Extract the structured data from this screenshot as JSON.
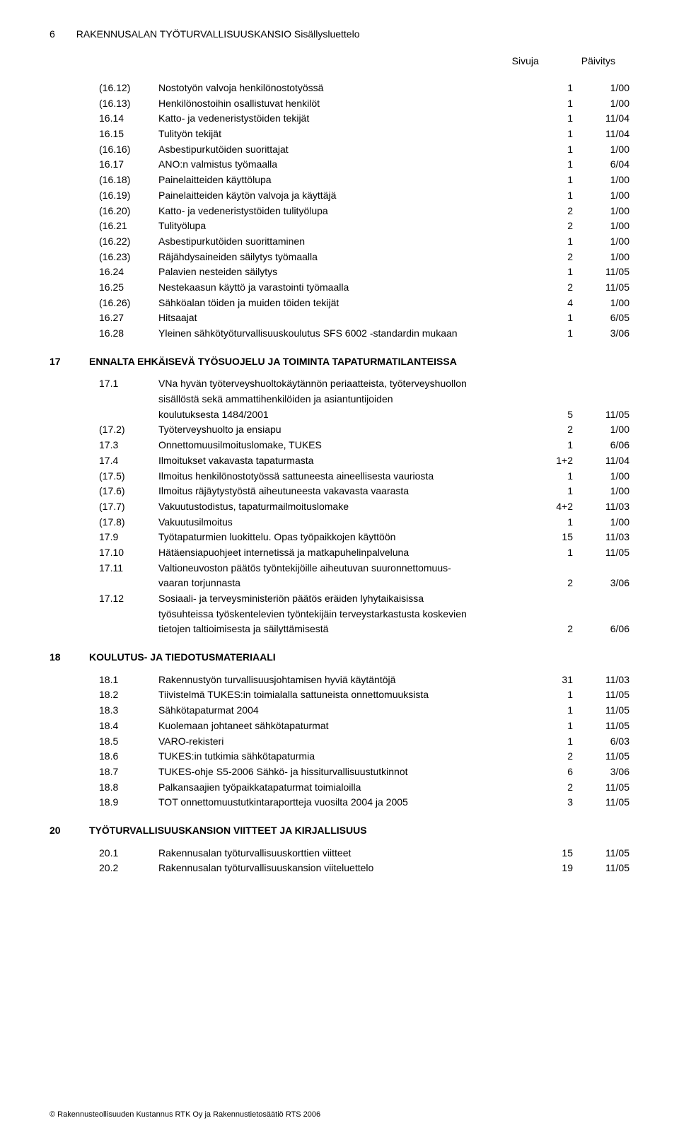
{
  "page_number": "6",
  "header_title": "RAKENNUSALAN TYÖTURVALLISUUSKANSIO Sisällysluettelo",
  "col_pages": "Sivuja",
  "col_updated": "Päivitys",
  "preRows": [
    {
      "num": "(16.12)",
      "label": "Nostotyön valvoja henkilönostotyössä",
      "pages": "1",
      "updated": "1/00"
    },
    {
      "num": "(16.13)",
      "label": "Henkilönostoihin osallistuvat henkilöt",
      "pages": "1",
      "updated": "1/00"
    },
    {
      "num": "16.14",
      "label": "Katto- ja vedeneristystöiden tekijät",
      "pages": "1",
      "updated": "11/04"
    },
    {
      "num": "16.15",
      "label": "Tulityön tekijät",
      "pages": "1",
      "updated": "11/04"
    },
    {
      "num": "(16.16)",
      "label": "Asbestipurkutöiden suorittajat",
      "pages": "1",
      "updated": "1/00"
    },
    {
      "num": "16.17",
      "label": "ANO:n valmistus työmaalla",
      "pages": "1",
      "updated": "6/04"
    },
    {
      "num": "(16.18)",
      "label": "Painelaitteiden käyttölupa",
      "pages": "1",
      "updated": "1/00"
    },
    {
      "num": "(16.19)",
      "label": "Painelaitteiden käytön valvoja ja käyttäjä",
      "pages": "1",
      "updated": "1/00"
    },
    {
      "num": "(16.20)",
      "label": "Katto- ja vedeneristystöiden tulityölupa",
      "pages": "2",
      "updated": "1/00"
    },
    {
      "num": "(16.21",
      "label": "Tulityölupa",
      "pages": "2",
      "updated": "1/00"
    },
    {
      "num": "(16.22)",
      "label": "Asbestipurkutöiden suorittaminen",
      "pages": "1",
      "updated": "1/00"
    },
    {
      "num": "(16.23)",
      "label": "Räjähdysaineiden säilytys työmaalla",
      "pages": "2",
      "updated": "1/00"
    },
    {
      "num": "16.24",
      "label": "Palavien nesteiden säilytys",
      "pages": "1",
      "updated": "11/05"
    },
    {
      "num": "16.25",
      "label": "Nestekaasun käyttö ja varastointi työmaalla",
      "pages": "2",
      "updated": "11/05"
    },
    {
      "num": "(16.26)",
      "label": "Sähköalan töiden ja muiden töiden tekijät",
      "pages": "4",
      "updated": "1/00"
    },
    {
      "num": "16.27",
      "label": "Hitsaajat",
      "pages": "1",
      "updated": "6/05"
    },
    {
      "num": "16.28",
      "label": "Yleinen sähkötyöturvallisuuskoulutus SFS 6002 -standardin mukaan",
      "pages": "1",
      "updated": "3/06"
    }
  ],
  "sections": [
    {
      "num": "17",
      "title": "ENNALTA EHKÄISEVÄ TYÖSUOJELU JA TOIMINTA TAPATURMATILANTEISSA",
      "rows": [
        {
          "num": "17.1",
          "multi": [
            "VNa hyvän työterveyshuoltokäytännön periaatteista, työterveyshuollon",
            "sisällöstä sekä ammattihenkilöiden ja asiantuntijoiden",
            "koulutuksesta 1484/2001"
          ],
          "pages": "5",
          "updated": "11/05"
        },
        {
          "num": "(17.2)",
          "label": "Työterveyshuolto ja ensiapu",
          "pages": "2",
          "updated": "1/00"
        },
        {
          "num": "17.3",
          "label": "Onnettomuusilmoituslomake, TUKES",
          "pages": "1",
          "updated": "6/06"
        },
        {
          "num": "17.4",
          "label": "Ilmoitukset vakavasta tapaturmasta",
          "pages": "1+2",
          "updated": "11/04"
        },
        {
          "num": "(17.5)",
          "label": "Ilmoitus henkilönostotyössä sattuneesta aineellisesta vauriosta",
          "pages": "1",
          "updated": "1/00"
        },
        {
          "num": "(17.6)",
          "label": "Ilmoitus räjäytystyöstä aiheutuneesta vakavasta vaarasta",
          "pages": "1",
          "updated": "1/00"
        },
        {
          "num": "(17.7)",
          "label": "Vakuutustodistus, tapaturmailmoituslomake",
          "pages": "4+2",
          "updated": "11/03"
        },
        {
          "num": "(17.8)",
          "label": "Vakuutusilmoitus",
          "pages": "1",
          "updated": "1/00"
        },
        {
          "num": "17.9",
          "label": "Työtapaturmien luokittelu. Opas työpaikkojen käyttöön",
          "pages": "15",
          "updated": "11/03"
        },
        {
          "num": "17.10",
          "label": "Hätäensiapuohjeet internetissä ja matkapuhelinpalveluna",
          "pages": "1",
          "updated": "11/05"
        },
        {
          "num": "17.11",
          "multi": [
            "Valtioneuvoston päätös työntekijöille aiheutuvan suuronnettomuus-",
            "vaaran torjunnasta"
          ],
          "pages": "2",
          "updated": "3/06"
        },
        {
          "num": "17.12",
          "multi": [
            "Sosiaali- ja terveysministeriön päätös eräiden lyhytaikaisissa",
            "työsuhteissa työskentelevien työntekijäin terveystarkastusta koskevien",
            "tietojen taltioimisesta ja säilyttämisestä"
          ],
          "pages": "2",
          "updated": "6/06"
        }
      ]
    },
    {
      "num": "18",
      "title": "KOULUTUS- JA TIEDOTUSMATERIAALI",
      "rows": [
        {
          "num": "18.1",
          "label": "Rakennustyön turvallisuusjohtamisen hyviä käytäntöjä",
          "pages": "31",
          "updated": "11/03"
        },
        {
          "num": "18.2",
          "label": "Tiivistelmä TUKES:in toimialalla sattuneista onnettomuuksista",
          "pages": "1",
          "updated": "11/05"
        },
        {
          "num": "18.3",
          "label": "Sähkötapaturmat 2004",
          "pages": "1",
          "updated": "11/05"
        },
        {
          "num": "18.4",
          "label": "Kuolemaan johtaneet sähkötapaturmat",
          "pages": "1",
          "updated": "11/05"
        },
        {
          "num": "18.5",
          "label": "VARO-rekisteri",
          "pages": "1",
          "updated": "6/03"
        },
        {
          "num": "18.6",
          "label": "TUKES:in tutkimia sähkötapaturmia",
          "pages": "2",
          "updated": "11/05"
        },
        {
          "num": "18.7",
          "label": "TUKES-ohje S5-2006 Sähkö- ja hissiturvallisuustutkinnot",
          "pages": "6",
          "updated": "3/06"
        },
        {
          "num": "18.8",
          "label": "Palkansaajien työpaikkatapaturmat toimialoilla",
          "pages": "2",
          "updated": "11/05"
        },
        {
          "num": "18.9",
          "label": "TOT onnettomuustutkintaraportteja vuosilta 2004 ja 2005",
          "pages": "3",
          "updated": "11/05"
        }
      ]
    },
    {
      "num": "20",
      "title": "TYÖTURVALLISUUSKANSION VIITTEET JA KIRJALLISUUS",
      "rows": [
        {
          "num": "20.1",
          "label": "Rakennusalan työturvallisuuskorttien viitteet",
          "pages": "15",
          "updated": "11/05"
        },
        {
          "num": "20.2",
          "label": "Rakennusalan työturvallisuuskansion viiteluettelo",
          "pages": "19",
          "updated": "11/05"
        }
      ]
    }
  ],
  "footer": "© Rakennusteollisuuden Kustannus RTK Oy ja Rakennustietosäätiö RTS 2006"
}
